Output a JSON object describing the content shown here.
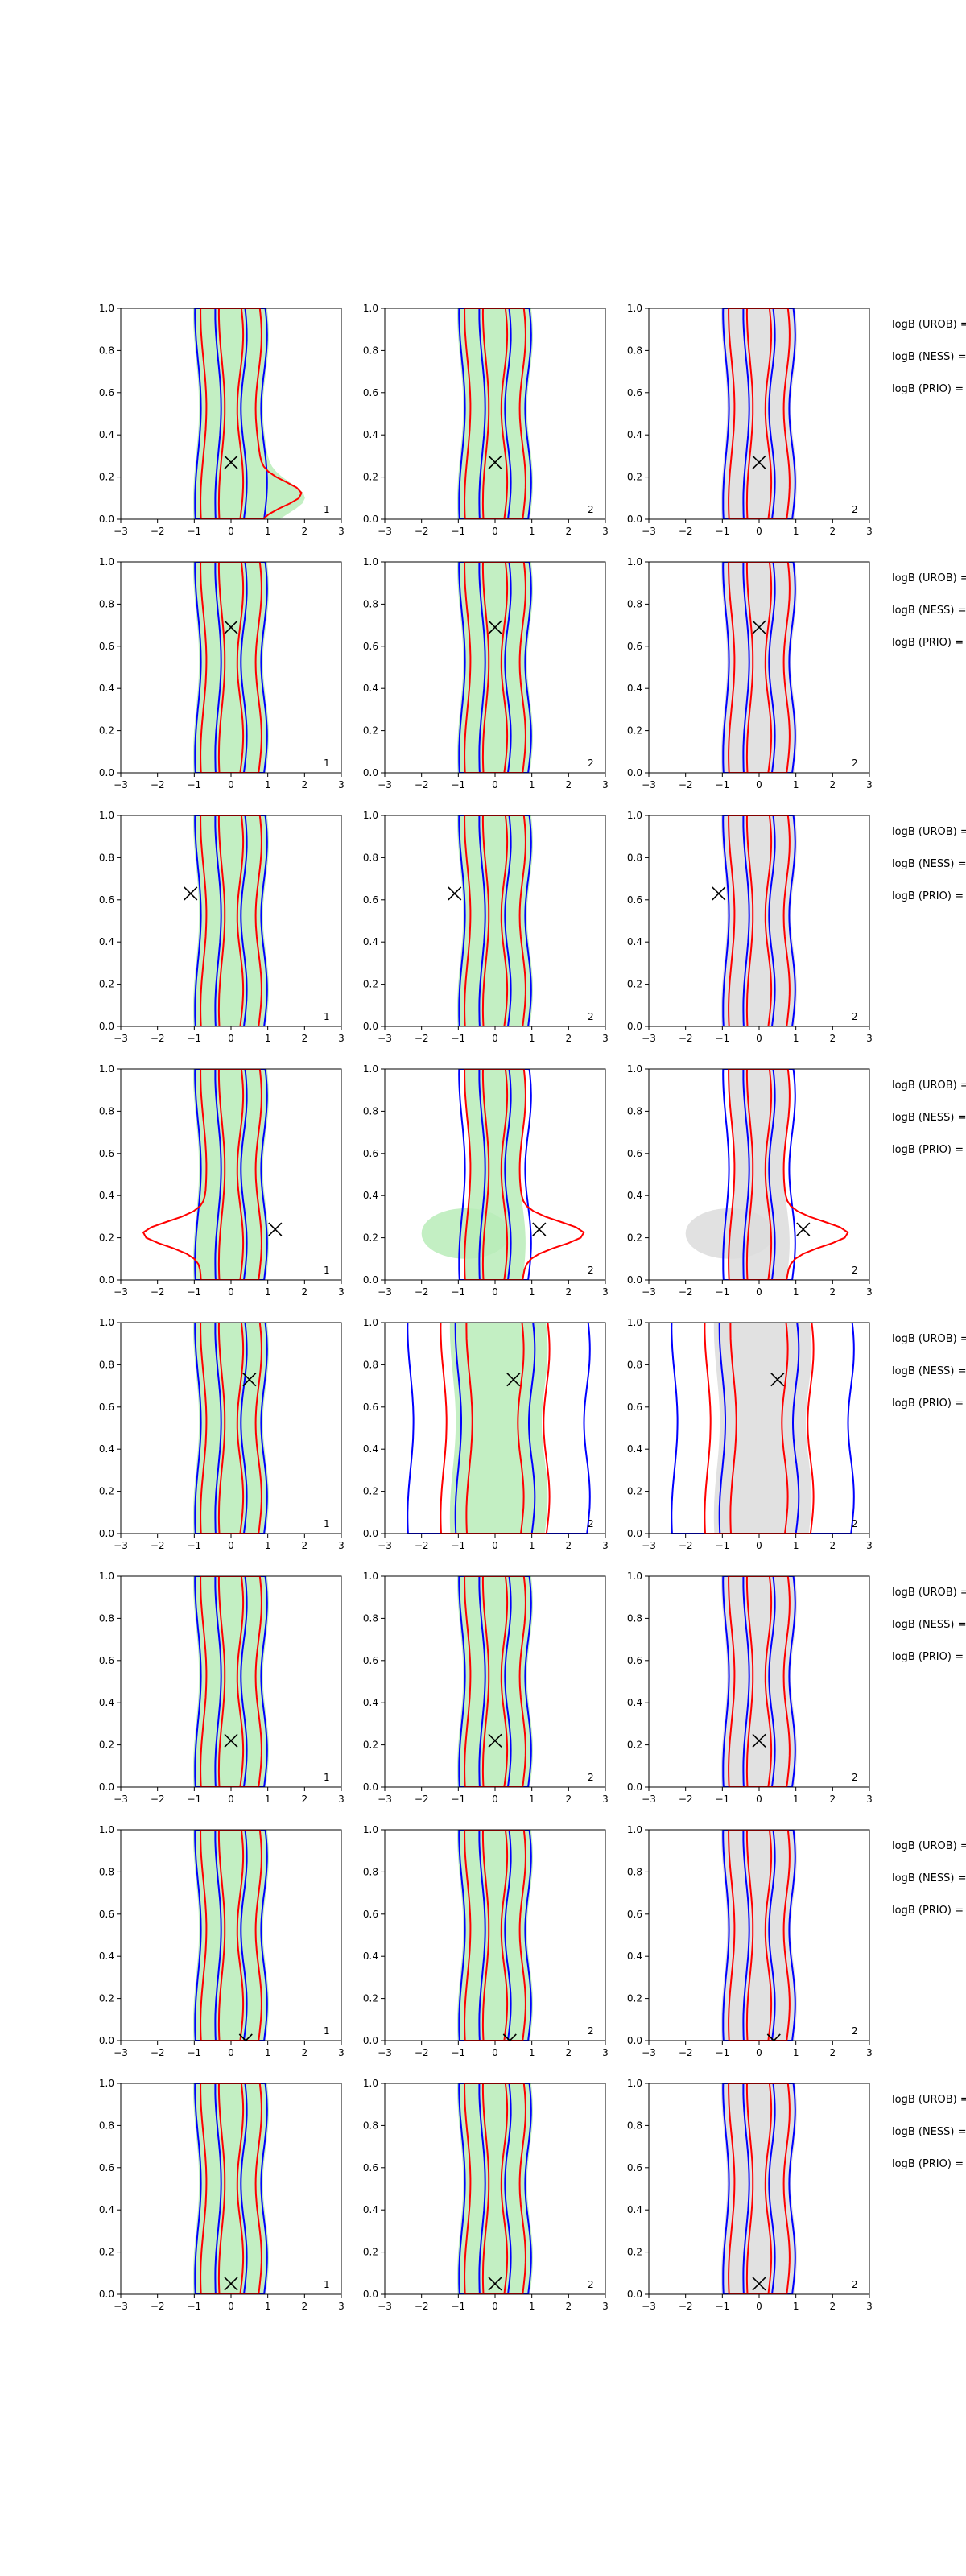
{
  "chart_data": {
    "type": "contour",
    "xlim": [
      -3,
      3
    ],
    "ylim": [
      0.0,
      1.0
    ],
    "xticks": [
      "−3",
      "−2",
      "−1",
      "0",
      "1",
      "2",
      "3"
    ],
    "yticks": [
      "0.0",
      "0.2",
      "0.4",
      "0.6",
      "0.8",
      "1.0"
    ],
    "grid": false,
    "colors": {
      "blue": "#0000ff",
      "red": "#ff0000",
      "green_fill": "#b8ecb8",
      "gray_fill": "#dcdcdc",
      "marker": "#000000"
    },
    "side_labels": [
      "logB (UROB) =",
      "logB (NESS) =",
      "logB (PRIO) ="
    ],
    "rows": [
      {
        "marker": [
          0.0,
          0.27
        ],
        "corner_labels": [
          "1",
          "2",
          "2"
        ]
      },
      {
        "marker": [
          0.0,
          0.69
        ],
        "corner_labels": [
          "1",
          "2",
          "2"
        ]
      },
      {
        "marker": [
          -1.1,
          0.63
        ],
        "corner_labels": [
          "1",
          "2",
          "2"
        ]
      },
      {
        "marker": [
          1.2,
          0.24
        ],
        "corner_labels": [
          "1",
          "2",
          "2"
        ]
      },
      {
        "marker": [
          0.5,
          0.73
        ],
        "corner_labels": [
          "1",
          "2",
          "2"
        ]
      },
      {
        "marker": [
          0.0,
          0.22
        ],
        "corner_labels": [
          "1",
          "2",
          "2"
        ]
      },
      {
        "marker": [
          0.4,
          0.0
        ],
        "corner_labels": [
          "1",
          "2",
          "2"
        ]
      },
      {
        "marker": [
          0.0,
          0.05
        ],
        "corner_labels": [
          "1",
          "2",
          "2"
        ]
      }
    ]
  }
}
